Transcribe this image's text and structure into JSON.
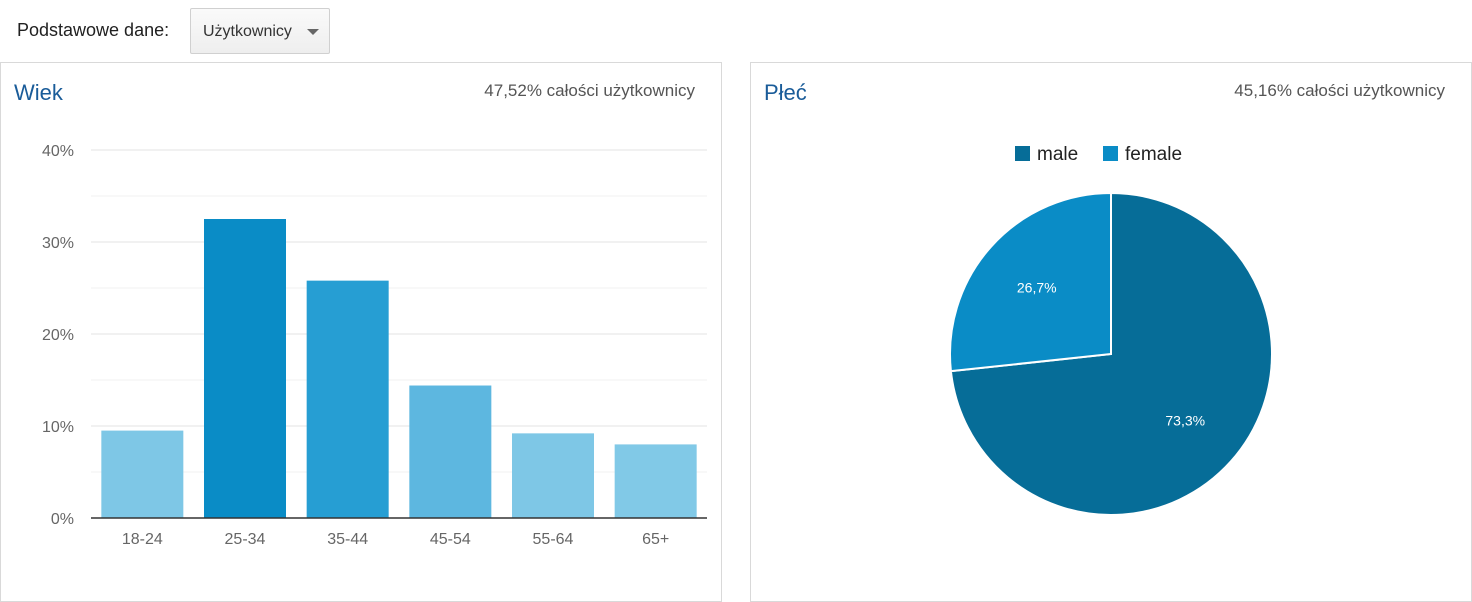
{
  "header": {
    "label": "Podstawowe dane:",
    "dropdown_value": "Użytkownicy"
  },
  "age_panel": {
    "title": "Wiek",
    "subtitle": "47,52% całości użytkownicy"
  },
  "gender_panel": {
    "title": "Płeć",
    "subtitle": "45,16% całości użytkownicy"
  },
  "colors": {
    "male": "#066d98",
    "female": "#0a8cc6",
    "bar_colors": [
      "#7ec7e6",
      "#0a8cc6",
      "#269ed3",
      "#5db7e0",
      "#7ec7e6",
      "#81c9e7"
    ]
  },
  "chart_data": [
    {
      "type": "bar",
      "categories": [
        "18-24",
        "25-34",
        "35-44",
        "45-54",
        "55-64",
        "65+"
      ],
      "values": [
        9.5,
        32.5,
        25.8,
        14.4,
        9.2,
        8.0
      ],
      "ylim": [
        0,
        40
      ],
      "yticks": [
        0,
        10,
        20,
        30,
        40
      ],
      "ytick_labels": [
        "0%",
        "10%",
        "20%",
        "30%",
        "40%"
      ],
      "grid": true
    },
    {
      "type": "pie",
      "labels": [
        "male",
        "female"
      ],
      "values": [
        73.3,
        26.7
      ],
      "value_labels": [
        "73,3%",
        "26,7%"
      ],
      "legend": [
        "male",
        "female"
      ],
      "legend_position": "top"
    }
  ]
}
